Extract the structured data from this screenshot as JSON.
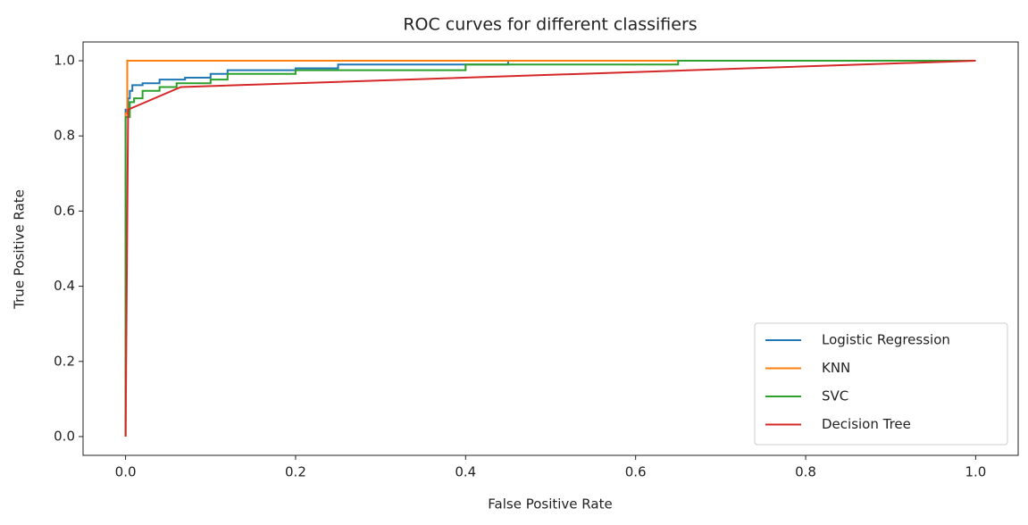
{
  "chart_data": {
    "type": "line",
    "title": "ROC curves for different classifiers",
    "x_label": "False Positive Rate",
    "y_label": "True Positive Rate",
    "xlim": [
      -0.05,
      1.05
    ],
    "ylim": [
      -0.05,
      1.05
    ],
    "xticks": [
      {
        "value": 0,
        "label": "0.0"
      },
      0.2,
      0.4,
      0.6,
      0.8,
      {
        "value": 1,
        "label": "1.0"
      }
    ],
    "yticks": [
      {
        "value": 0,
        "label": "0.0"
      },
      0.2,
      0.4,
      0.6,
      0.8,
      {
        "value": 1,
        "label": "1.0"
      }
    ],
    "legend": "lower right",
    "series": [
      {
        "name": "Logistic Regression",
        "color": "#1f77b4",
        "x": [
          0,
          0,
          0.003,
          0.003,
          0.005,
          0.005,
          0.008,
          0.008,
          0.02,
          0.02,
          0.04,
          0.04,
          0.07,
          0.07,
          0.1,
          0.1,
          0.12,
          0.12,
          0.2,
          0.2,
          0.25,
          0.25,
          0.45,
          0.45,
          1
        ],
        "values": [
          0,
          0.87,
          0.87,
          0.9,
          0.9,
          0.92,
          0.92,
          0.935,
          0.935,
          0.94,
          0.94,
          0.95,
          0.95,
          0.955,
          0.955,
          0.965,
          0.965,
          0.975,
          0.975,
          0.98,
          0.98,
          0.99,
          0.99,
          1,
          1
        ]
      },
      {
        "name": "KNN",
        "color": "#ff7f0e",
        "x": [
          0,
          0,
          0.002,
          0.002,
          1
        ],
        "values": [
          0,
          0.86,
          0.86,
          1,
          1
        ]
      },
      {
        "name": "SVC",
        "color": "#2ca02c",
        "x": [
          0,
          0,
          0.005,
          0.005,
          0.01,
          0.01,
          0.02,
          0.02,
          0.04,
          0.04,
          0.06,
          0.06,
          0.1,
          0.1,
          0.12,
          0.12,
          0.2,
          0.2,
          0.4,
          0.4,
          0.65,
          0.65,
          1
        ],
        "values": [
          0,
          0.85,
          0.85,
          0.89,
          0.89,
          0.9,
          0.9,
          0.92,
          0.92,
          0.93,
          0.93,
          0.94,
          0.94,
          0.95,
          0.95,
          0.965,
          0.965,
          0.975,
          0.975,
          0.99,
          0.99,
          1,
          1
        ]
      },
      {
        "name": "Decision Tree",
        "color": "#d62728",
        "x": [
          0,
          0.003,
          0.065,
          1
        ],
        "values": [
          0,
          0.87,
          0.93,
          1
        ]
      }
    ]
  }
}
